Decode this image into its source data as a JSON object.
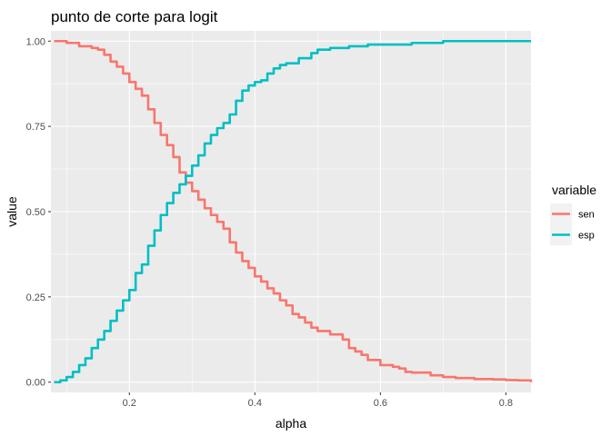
{
  "chart_data": {
    "type": "line",
    "title": "punto de corte para logit",
    "xlabel": "alpha",
    "ylabel": "value",
    "xlim": [
      0.075,
      0.84
    ],
    "ylim": [
      -0.03,
      1.03
    ],
    "x_ticks": [
      0.2,
      0.4,
      0.6,
      0.8
    ],
    "x_tick_labels": [
      "0.2",
      "0.4",
      "0.6",
      "0.8"
    ],
    "y_ticks": [
      0.0,
      0.25,
      0.5,
      0.75,
      1.0
    ],
    "y_tick_labels": [
      "0.00",
      "0.25",
      "0.50",
      "0.75",
      "1.00"
    ],
    "grid": true,
    "legend": {
      "title": "variable",
      "placement": "right"
    },
    "series": [
      {
        "name": "sen",
        "color": "#F8766D",
        "x": [
          0.08,
          0.1,
          0.12,
          0.14,
          0.15,
          0.16,
          0.17,
          0.18,
          0.19,
          0.2,
          0.21,
          0.22,
          0.23,
          0.24,
          0.25,
          0.26,
          0.27,
          0.28,
          0.29,
          0.3,
          0.31,
          0.32,
          0.33,
          0.34,
          0.35,
          0.36,
          0.37,
          0.38,
          0.39,
          0.4,
          0.41,
          0.42,
          0.43,
          0.44,
          0.45,
          0.46,
          0.47,
          0.48,
          0.49,
          0.5,
          0.52,
          0.54,
          0.55,
          0.56,
          0.57,
          0.58,
          0.6,
          0.62,
          0.63,
          0.64,
          0.65,
          0.68,
          0.7,
          0.72,
          0.75,
          0.78,
          0.8,
          0.82,
          0.84
        ],
        "values": [
          1.0,
          0.995,
          0.985,
          0.98,
          0.975,
          0.96,
          0.94,
          0.925,
          0.905,
          0.88,
          0.86,
          0.84,
          0.8,
          0.76,
          0.725,
          0.695,
          0.66,
          0.615,
          0.585,
          0.56,
          0.535,
          0.51,
          0.49,
          0.47,
          0.45,
          0.41,
          0.38,
          0.355,
          0.335,
          0.31,
          0.295,
          0.275,
          0.26,
          0.24,
          0.225,
          0.2,
          0.19,
          0.175,
          0.16,
          0.15,
          0.14,
          0.125,
          0.1,
          0.09,
          0.08,
          0.065,
          0.05,
          0.045,
          0.04,
          0.03,
          0.028,
          0.02,
          0.015,
          0.012,
          0.009,
          0.008,
          0.006,
          0.005,
          0.0
        ]
      },
      {
        "name": "esp",
        "color": "#00BFC4",
        "x": [
          0.08,
          0.09,
          0.1,
          0.11,
          0.12,
          0.13,
          0.14,
          0.15,
          0.16,
          0.17,
          0.18,
          0.19,
          0.2,
          0.21,
          0.22,
          0.23,
          0.24,
          0.25,
          0.26,
          0.27,
          0.28,
          0.29,
          0.3,
          0.31,
          0.32,
          0.33,
          0.34,
          0.35,
          0.36,
          0.37,
          0.38,
          0.39,
          0.4,
          0.41,
          0.42,
          0.43,
          0.44,
          0.45,
          0.47,
          0.49,
          0.5,
          0.52,
          0.55,
          0.58,
          0.6,
          0.62,
          0.65,
          0.7,
          0.75,
          0.8,
          0.84
        ],
        "values": [
          0.0,
          0.005,
          0.015,
          0.03,
          0.05,
          0.07,
          0.1,
          0.125,
          0.15,
          0.18,
          0.21,
          0.24,
          0.27,
          0.32,
          0.345,
          0.4,
          0.445,
          0.49,
          0.525,
          0.555,
          0.58,
          0.605,
          0.635,
          0.665,
          0.7,
          0.725,
          0.745,
          0.76,
          0.785,
          0.825,
          0.855,
          0.87,
          0.88,
          0.885,
          0.905,
          0.92,
          0.93,
          0.935,
          0.95,
          0.965,
          0.975,
          0.98,
          0.985,
          0.99,
          0.99,
          0.99,
          0.995,
          1.0,
          1.0,
          1.0,
          1.0
        ]
      }
    ]
  }
}
